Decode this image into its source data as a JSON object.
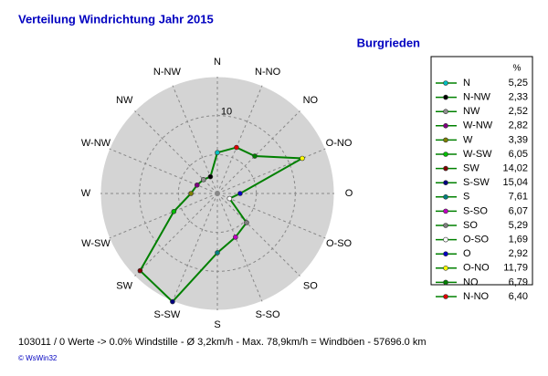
{
  "chart_data": {
    "type": "windrose",
    "title": "Verteilung Windrichtung   Jahr 2015",
    "subtitle": "Burgrieden",
    "categories": [
      "N",
      "N-NW",
      "NW",
      "W-NW",
      "W",
      "W-SW",
      "SW",
      "S-SW",
      "S",
      "S-SO",
      "SO",
      "O-SO",
      "O",
      "O-NO",
      "NO",
      "N-NO"
    ],
    "values": [
      5.25,
      2.33,
      2.52,
      2.82,
      3.39,
      6.05,
      14.02,
      15.04,
      7.61,
      6.07,
      5.29,
      1.69,
      2.92,
      11.79,
      6.79,
      6.4
    ],
    "value_labels": [
      "5,25",
      "2,33",
      "2,52",
      "2,82",
      "3,39",
      "6,05",
      "14,02",
      "15,04",
      "7,61",
      "6,07",
      "5,29",
      "1,69",
      "2,92",
      "11,79",
      "6,79",
      "6,40"
    ],
    "colors": [
      "#00c0c0",
      "#000000",
      "#909090",
      "#800080",
      "#808000",
      "#00c000",
      "#800000",
      "#000080",
      "#008080",
      "#c000c0",
      "#808080",
      "#ffffff",
      "#0000c0",
      "#ffff00",
      "#008000",
      "#e00000"
    ],
    "line_color": "#008000",
    "rlim": [
      0,
      15
    ],
    "rticks": [
      10
    ],
    "legend_unit": "%",
    "footer": "103011 / 0 Werte  -> 0.0% Windstille   -   Ø 3,2km/h  -  Max. 78,9km/h = Windböen   -   57696.0 km",
    "credit": "© WsWin32"
  }
}
